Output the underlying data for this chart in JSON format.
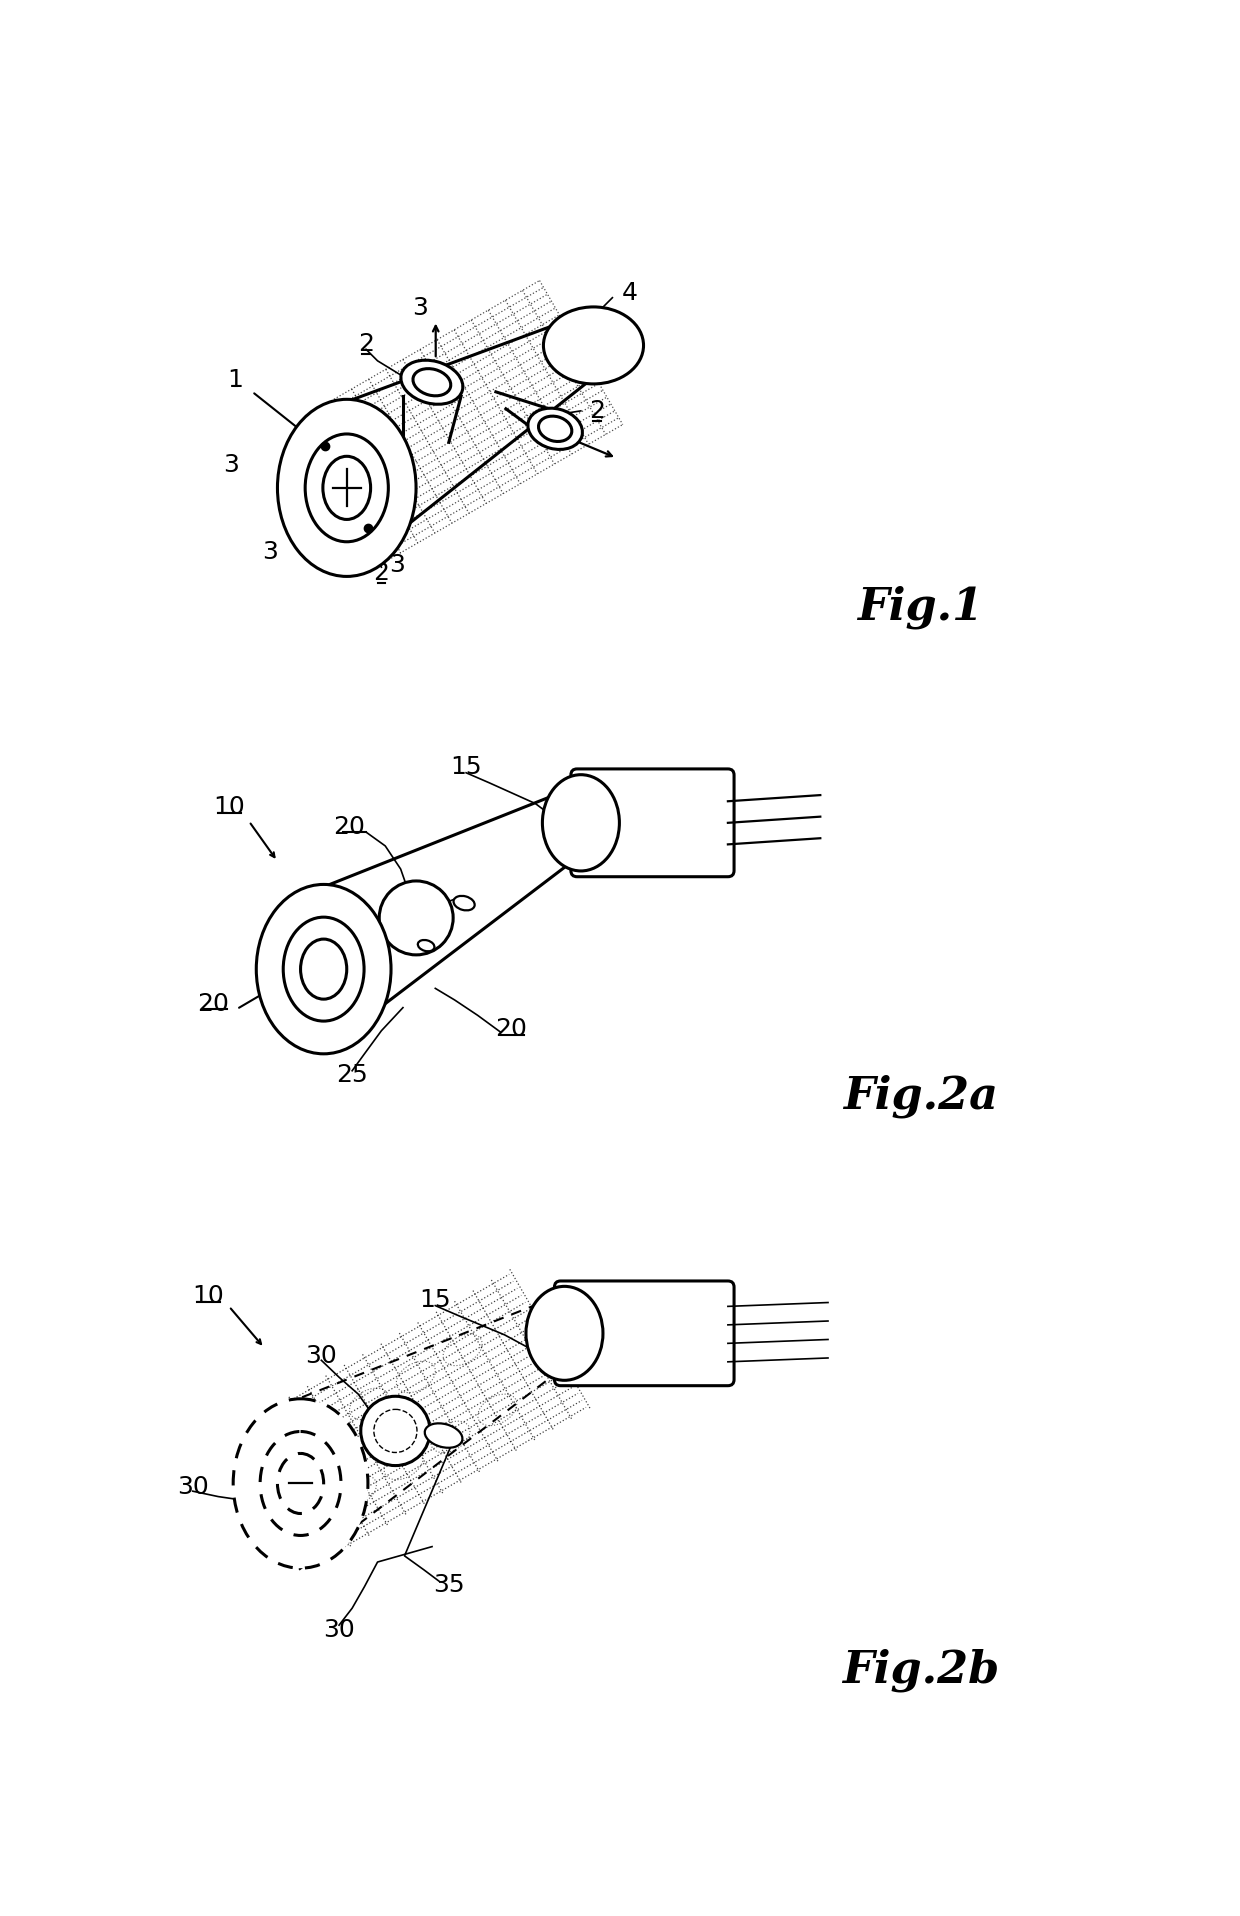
{
  "fig1_label": "Fig.1",
  "fig2a_label": "Fig.2a",
  "fig2b_label": "Fig.2b",
  "background_color": "#ffffff",
  "line_color": "#000000",
  "label_fontsize": 18,
  "figlabel_fontsize": 32,
  "figsize": [
    12.4,
    19.16
  ],
  "dpi": 100
}
